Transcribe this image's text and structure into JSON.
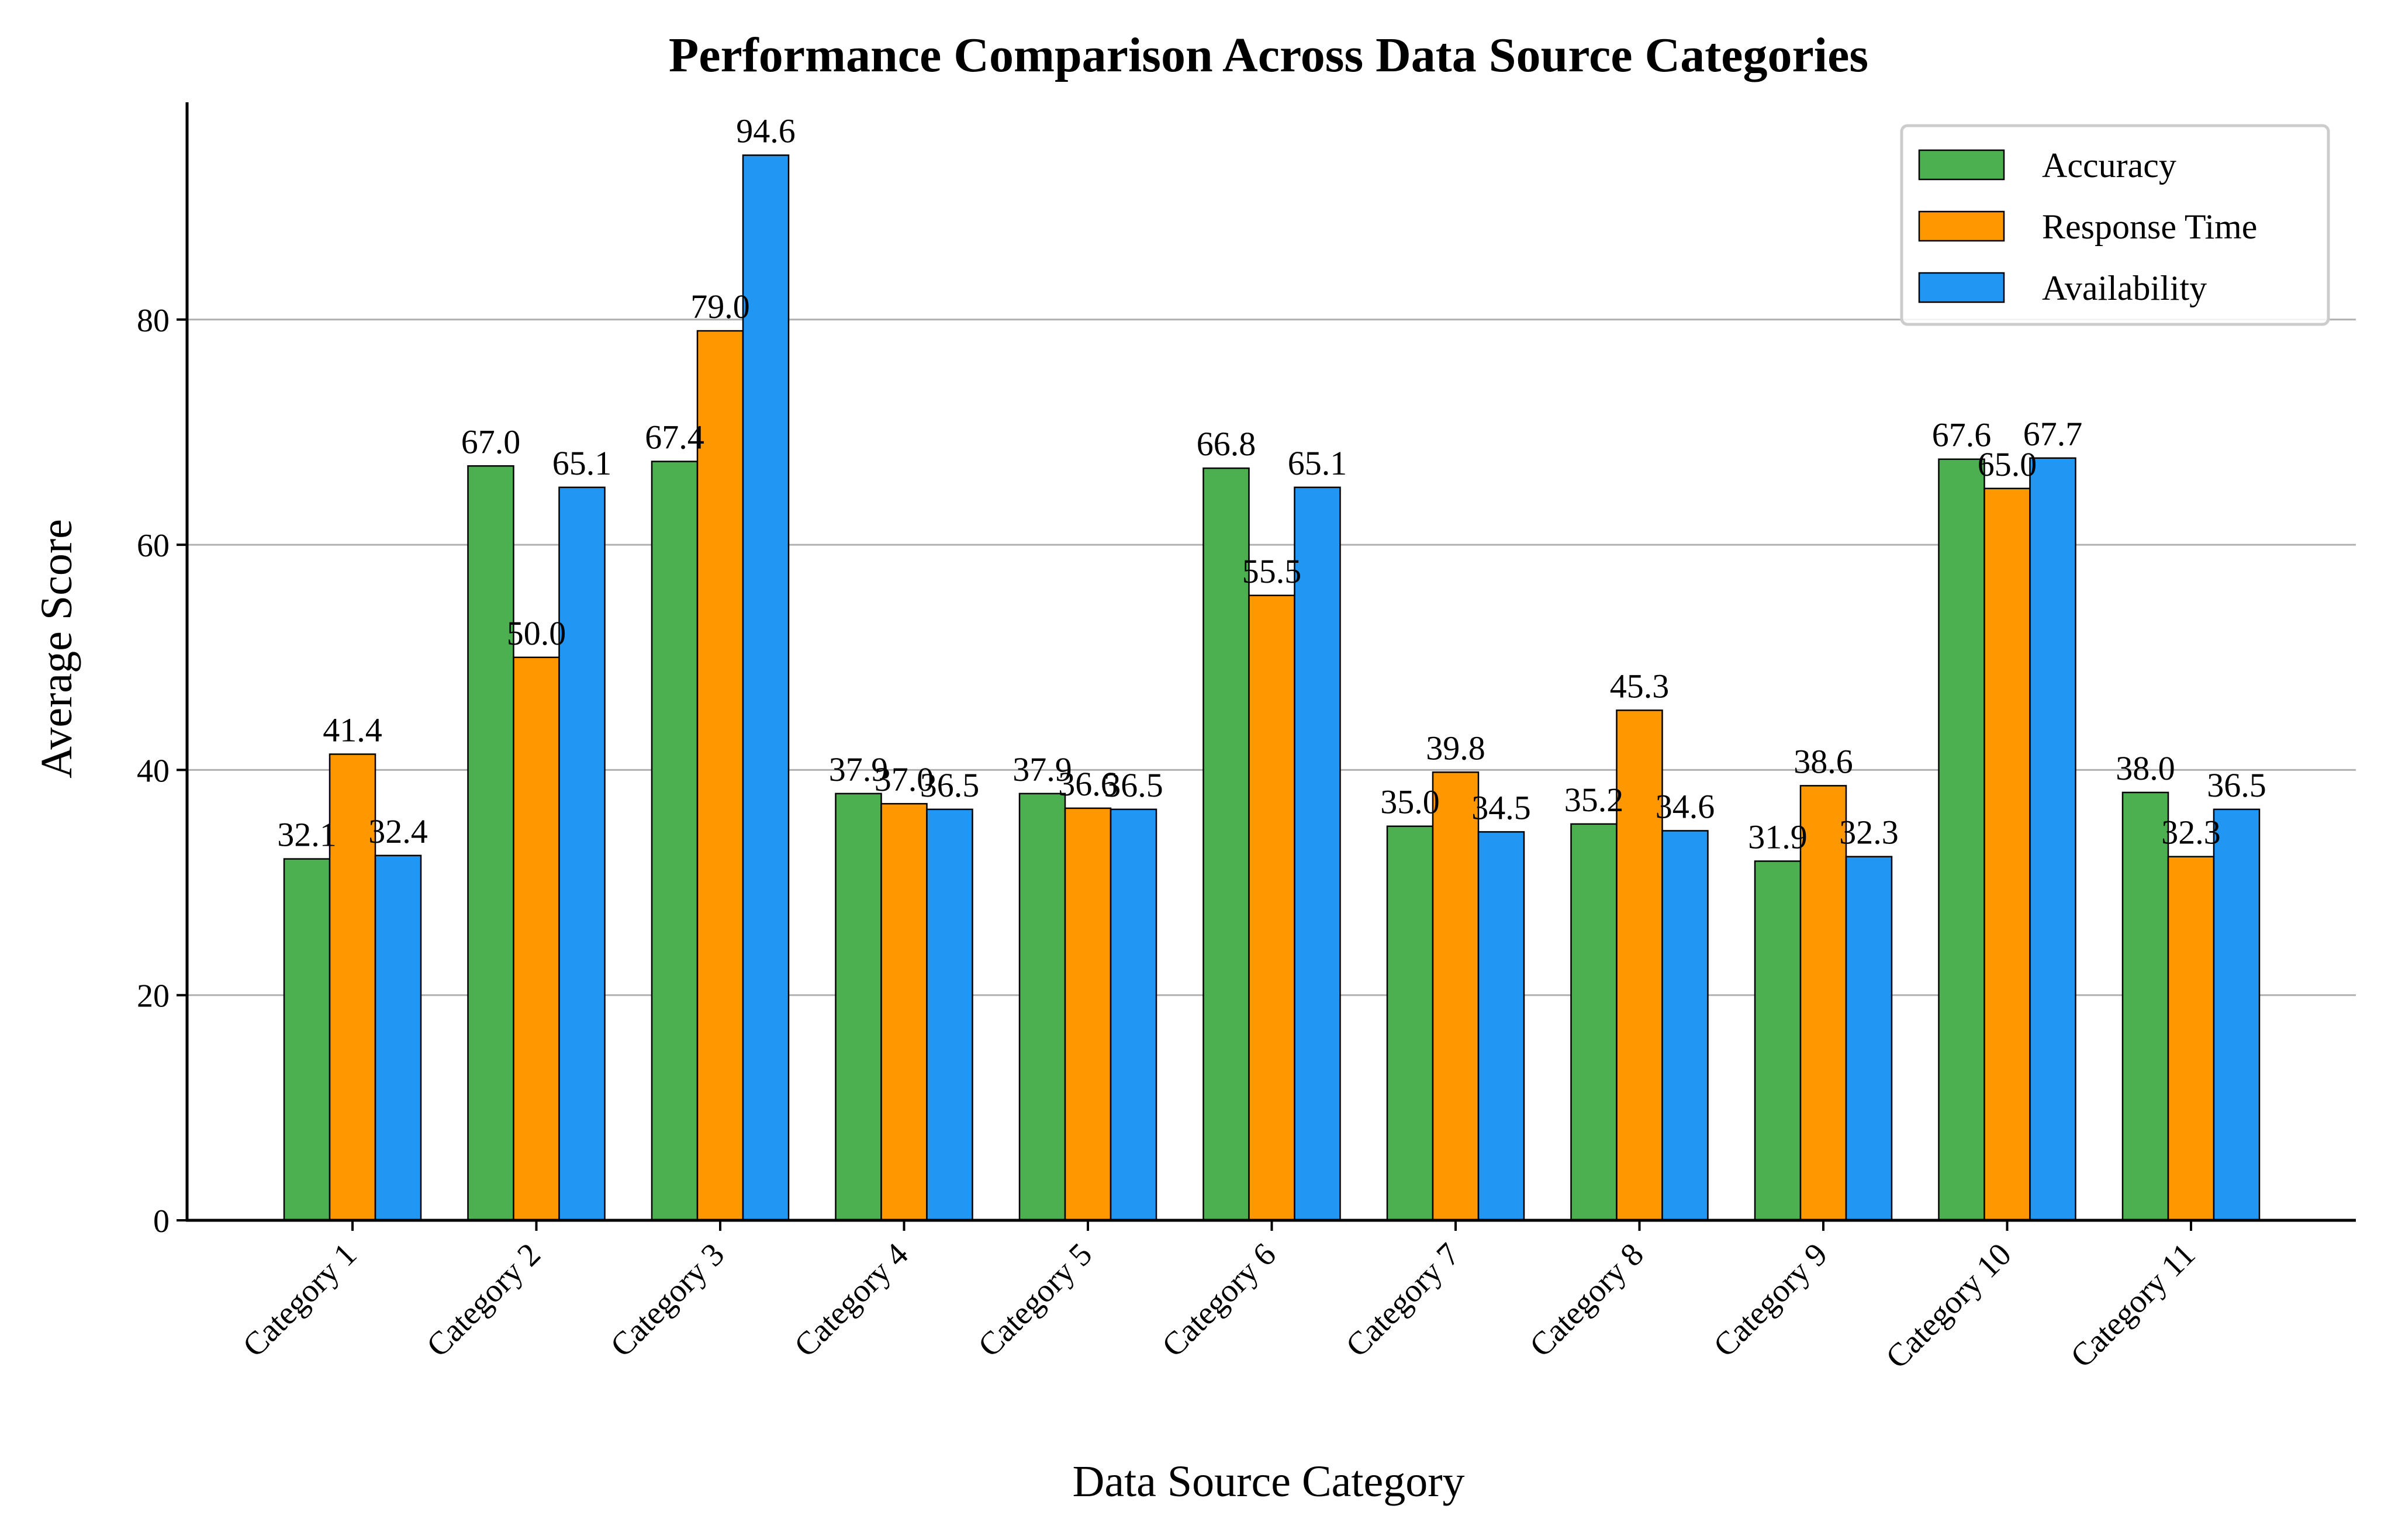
{
  "chart_data": {
    "type": "bar",
    "title": "Performance Comparison Across Data Source Categories",
    "xlabel": "Data Source Category",
    "ylabel": "Average Score",
    "categories": [
      "Category 1",
      "Category 2",
      "Category 3",
      "Category 4",
      "Category 5",
      "Category 6",
      "Category 7",
      "Category 8",
      "Category 9",
      "Category 10",
      "Category 11"
    ],
    "series": [
      {
        "name": "Accuracy",
        "color": "#4caf50",
        "values": [
          32.1,
          67.0,
          67.4,
          37.9,
          37.9,
          66.8,
          35.0,
          35.2,
          31.9,
          67.6,
          38.0
        ],
        "labels": [
          "32.1",
          "67.0",
          "67.4",
          "37.9",
          "37.9",
          "66.8",
          "35.0",
          "35.2",
          "31.9",
          "67.6",
          "38.0"
        ]
      },
      {
        "name": "Response Time",
        "color": "#ff9800",
        "values": [
          41.4,
          50.0,
          79.0,
          37.0,
          36.6,
          55.5,
          39.8,
          45.3,
          38.6,
          65.0,
          32.3
        ],
        "labels": [
          "41.4",
          "50.0",
          "79.0",
          "37.0",
          "36.6",
          "55.5",
          "39.8",
          "45.3",
          "38.6",
          "65.0",
          "32.3"
        ]
      },
      {
        "name": "Availability",
        "color": "#2196f3",
        "values": [
          32.4,
          65.1,
          94.6,
          36.5,
          36.5,
          65.1,
          34.5,
          34.6,
          32.3,
          67.7,
          36.5
        ],
        "labels": [
          "32.4",
          "65.1",
          "94.6",
          "36.5",
          "36.5",
          "65.1",
          "34.5",
          "34.6",
          "32.3",
          "67.7",
          "36.5"
        ]
      }
    ],
    "yticks": [
      0,
      20,
      40,
      60,
      80
    ],
    "ylim": [
      0,
      99.3
    ],
    "grid": "y",
    "legend_position": "top-right"
  }
}
